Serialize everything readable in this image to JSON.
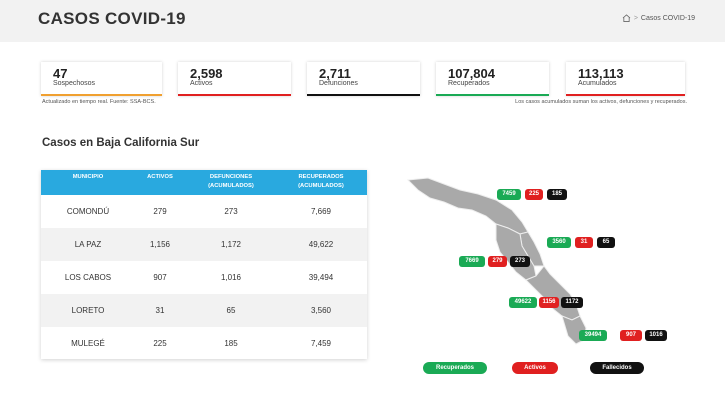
{
  "header": {
    "title": "CASOS COVID-19",
    "breadcrumb_sep": ">",
    "breadcrumb_current": "Casos COVID-19"
  },
  "stats": [
    {
      "value": "47",
      "label": "Sospechosos",
      "color": "#f0a030"
    },
    {
      "value": "2,598",
      "label": "Activos",
      "color": "#e02020"
    },
    {
      "value": "2,711",
      "label": "Defunciones",
      "color": "#111111"
    },
    {
      "value": "107,804",
      "label": "Recuperados",
      "color": "#1aaa55"
    },
    {
      "value": "113,113",
      "label": "Acumulados",
      "color": "#e02020"
    }
  ],
  "notes": {
    "left": "Actualizado en tiempo real. Fuente: SSA-BCS.",
    "right": "Los casos acumulados suman los activos, defunciones y recuperados."
  },
  "section_title": "Casos en Baja California Sur",
  "table": {
    "headers": {
      "municipio": "MUNICIPIO",
      "activos": "ACTIVOS",
      "defunciones_1": "DEFUNCIONES",
      "defunciones_2": "(ACUMULADOS)",
      "recuperados_1": "RECUPERADOS",
      "recuperados_2": "(ACUMULADOS)"
    },
    "rows": [
      {
        "municipio": "COMONDÚ",
        "activos": "279",
        "defunciones": "273",
        "recuperados": "7,669"
      },
      {
        "municipio": "LA PAZ",
        "activos": "1,156",
        "defunciones": "1,172",
        "recuperados": "49,622"
      },
      {
        "municipio": "LOS CABOS",
        "activos": "907",
        "defunciones": "1,016",
        "recuperados": "39,494"
      },
      {
        "municipio": "LORETO",
        "activos": "31",
        "defunciones": "65",
        "recuperados": "3,560"
      },
      {
        "municipio": "MULEGÉ",
        "activos": "225",
        "defunciones": "185",
        "recuperados": "7,459"
      }
    ]
  },
  "map": {
    "mulege": {
      "recuperados": "7459",
      "activos": "225",
      "fallecidos": "185"
    },
    "loreto": {
      "recuperados": "3560",
      "activos": "31",
      "fallecidos": "65"
    },
    "comondu": {
      "recuperados": "7669",
      "activos": "279",
      "fallecidos": "273"
    },
    "lapaz": {
      "recuperados": "49622",
      "activos": "1156",
      "fallecidos": "1172"
    },
    "loscabos": {
      "recuperados": "39494",
      "activos": "907",
      "fallecidos": "1016"
    }
  },
  "legend": {
    "recuperados": "Recuperados",
    "activos": "Activos",
    "fallecidos": "Fallecidos"
  }
}
